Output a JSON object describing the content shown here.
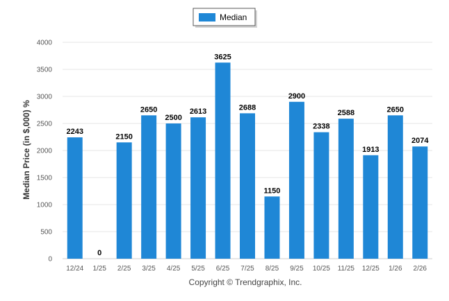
{
  "chart_data": {
    "type": "bar",
    "categories": [
      "12/24",
      "1/25",
      "2/25",
      "3/25",
      "4/25",
      "5/25",
      "6/25",
      "7/25",
      "8/25",
      "9/25",
      "10/25",
      "11/25",
      "12/25",
      "1/26",
      "2/26"
    ],
    "series": [
      {
        "name": "Median",
        "values": [
          2243,
          0,
          2150,
          2650,
          2500,
          2613,
          3625,
          2688,
          1150,
          2900,
          2338,
          2588,
          1913,
          2650,
          2074
        ],
        "color": "#1f87d6"
      }
    ],
    "ylabel": "Median Price (in $,000) %",
    "xlabel": "",
    "ylim": [
      0,
      4000
    ],
    "yticks": [
      0,
      500,
      1000,
      1500,
      2000,
      2500,
      3000,
      3500,
      4000
    ],
    "grid": true,
    "legend_position": "top-center"
  },
  "footer": {
    "copyright": "Copyright © Trendgraphix, Inc."
  }
}
